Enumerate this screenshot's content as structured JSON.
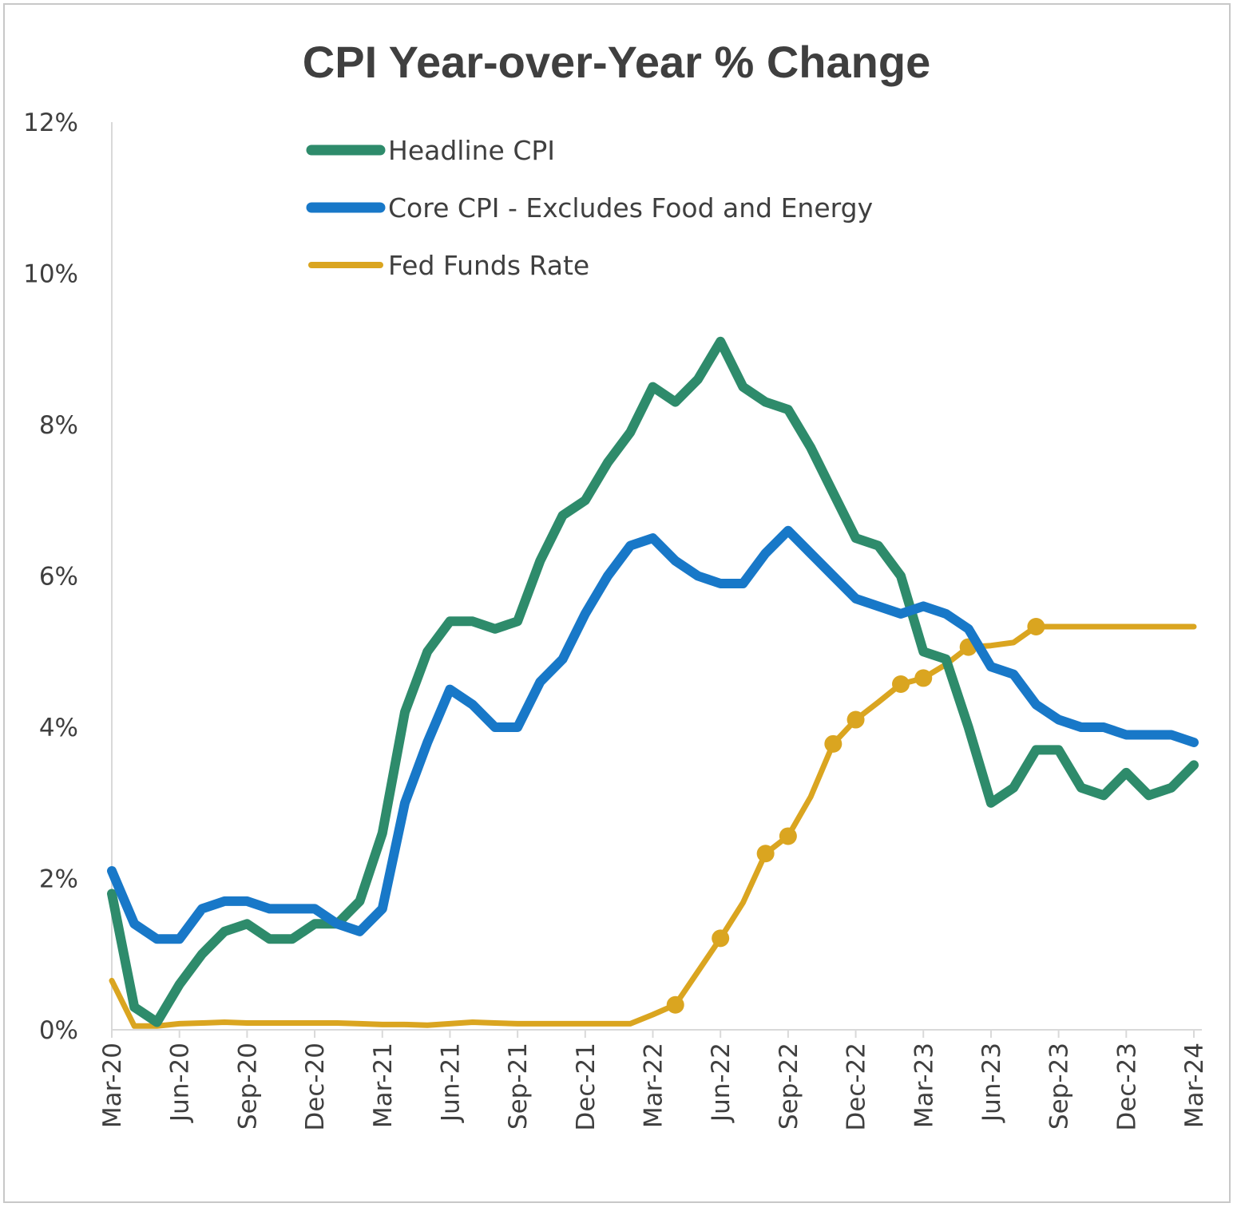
{
  "chart_data": {
    "type": "line",
    "title": "CPI Year-over-Year % Change",
    "xlabel": "",
    "ylabel": "",
    "ylim": [
      0,
      12
    ],
    "y_ticks": [
      "0%",
      "2%",
      "4%",
      "6%",
      "8%",
      "10%",
      "12%"
    ],
    "y_tick_values": [
      0,
      2,
      4,
      6,
      8,
      10,
      12
    ],
    "x_tick_labels": [
      "Mar-20",
      "Jun-20",
      "Sep-20",
      "Dec-20",
      "Mar-21",
      "Jun-21",
      "Sep-21",
      "Dec-21",
      "Mar-22",
      "Jun-22",
      "Sep-22",
      "Dec-22",
      "Mar-23",
      "Jun-23",
      "Sep-23",
      "Dec-23",
      "Mar-24"
    ],
    "x": [
      "Mar-20",
      "Apr-20",
      "May-20",
      "Jun-20",
      "Jul-20",
      "Aug-20",
      "Sep-20",
      "Oct-20",
      "Nov-20",
      "Dec-20",
      "Jan-21",
      "Feb-21",
      "Mar-21",
      "Apr-21",
      "May-21",
      "Jun-21",
      "Jul-21",
      "Aug-21",
      "Sep-21",
      "Oct-21",
      "Nov-21",
      "Dec-21",
      "Jan-22",
      "Feb-22",
      "Mar-22",
      "Apr-22",
      "May-22",
      "Jun-22",
      "Jul-22",
      "Aug-22",
      "Sep-22",
      "Oct-22",
      "Nov-22",
      "Dec-22",
      "Jan-23",
      "Feb-23",
      "Mar-23",
      "Apr-23",
      "May-23",
      "Jun-23",
      "Jul-23",
      "Aug-23",
      "Sep-23",
      "Oct-23",
      "Nov-23",
      "Dec-23",
      "Jan-24",
      "Feb-24",
      "Mar-24"
    ],
    "grid": false,
    "legend_position": "top-left",
    "series": [
      {
        "name": "Headline CPI",
        "color": "#2e8b6b",
        "width": 12,
        "markers": [],
        "values": [
          1.8,
          0.3,
          0.1,
          0.6,
          1.0,
          1.3,
          1.4,
          1.2,
          1.2,
          1.4,
          1.4,
          1.7,
          2.6,
          4.2,
          5.0,
          5.4,
          5.4,
          5.3,
          5.4,
          6.2,
          6.8,
          7.0,
          7.5,
          7.9,
          8.5,
          8.3,
          8.6,
          9.1,
          8.5,
          8.3,
          8.2,
          7.7,
          7.1,
          6.5,
          6.4,
          6.0,
          5.0,
          4.9,
          4.0,
          3.0,
          3.2,
          3.7,
          3.7,
          3.2,
          3.1,
          3.4,
          3.1,
          3.2,
          3.5
        ]
      },
      {
        "name": "Core CPI -  Excludes Food and Energy",
        "color": "#1878c8",
        "width": 12,
        "markers": [],
        "values": [
          2.1,
          1.4,
          1.2,
          1.2,
          1.6,
          1.7,
          1.7,
          1.6,
          1.6,
          1.6,
          1.4,
          1.3,
          1.6,
          3.0,
          3.8,
          4.5,
          4.3,
          4.0,
          4.0,
          4.6,
          4.9,
          5.5,
          6.0,
          6.4,
          6.5,
          6.2,
          6.0,
          5.9,
          5.9,
          6.3,
          6.6,
          6.3,
          6.0,
          5.7,
          5.6,
          5.5,
          5.6,
          5.5,
          5.3,
          4.8,
          4.7,
          4.3,
          4.1,
          4.0,
          4.0,
          3.9,
          3.9,
          3.9,
          3.8
        ]
      },
      {
        "name": "Fed Funds Rate",
        "color": "#daa520",
        "width": 7,
        "markers": [
          25,
          27,
          29,
          30,
          32,
          33,
          35,
          36,
          38,
          41
        ],
        "values": [
          0.65,
          0.05,
          0.05,
          0.08,
          0.09,
          0.1,
          0.09,
          0.09,
          0.09,
          0.09,
          0.09,
          0.08,
          0.07,
          0.07,
          0.06,
          0.08,
          0.1,
          0.09,
          0.08,
          0.08,
          0.08,
          0.08,
          0.08,
          0.08,
          0.2,
          0.33,
          0.77,
          1.21,
          1.68,
          2.33,
          2.56,
          3.08,
          3.78,
          4.1,
          4.33,
          4.57,
          4.65,
          4.83,
          5.06,
          5.08,
          5.12,
          5.33,
          5.33,
          5.33,
          5.33,
          5.33,
          5.33,
          5.33,
          5.33
        ]
      }
    ]
  }
}
